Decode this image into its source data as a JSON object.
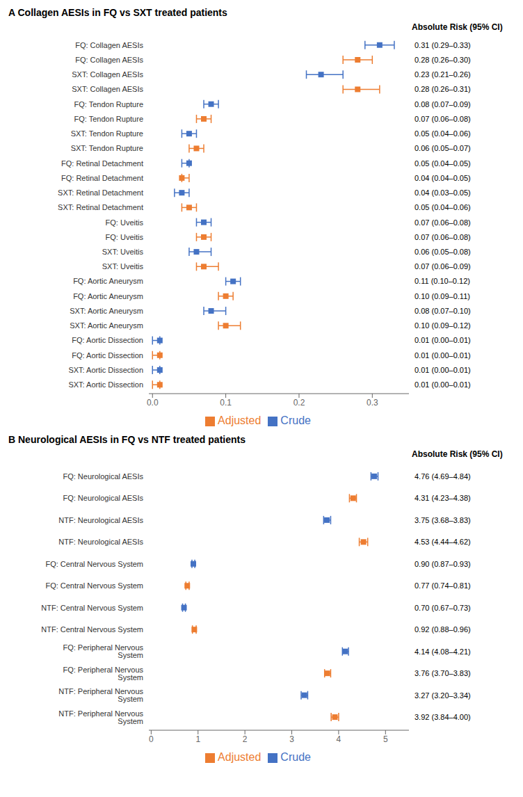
{
  "chart_data": [
    {
      "type": "scatter",
      "orientation": "horizontal",
      "title": "A  Collagen AESIs in FQ vs SXT treated patients",
      "annotations": [
        "Absolute Risk (95% CI)"
      ],
      "categories": [
        "FQ: Collagen AESIs",
        "FQ: Collagen AESIs",
        "SXT: Collagen AESIs",
        "SXT: Collagen AESIs",
        "FQ: Tendon Rupture",
        "FQ: Tendon Rupture",
        "SXT: Tendon Rupture",
        "SXT: Tendon Rupture",
        "FQ: Retinal Detachment",
        "FQ: Retinal Detachment",
        "SXT: Retinal Detachment",
        "SXT: Retinal Detachment",
        "FQ: Uveitis",
        "FQ: Uveitis",
        "SXT: Uveitis",
        "SXT: Uveitis",
        "FQ: Aortic Aneurysm",
        "FQ: Aortic Aneurysm",
        "SXT: Aortic Aneurysm",
        "SXT: Aortic Aneurysm",
        "FQ: Aortic Dissection",
        "FQ: Aortic Dissection",
        "SXT: Aortic Dissection",
        "SXT: Aortic Dissection"
      ],
      "xlim": [
        -0.005,
        0.35
      ],
      "xticks": [
        {
          "value": 0.0,
          "label": "0.0"
        },
        0.1,
        0.2,
        0.3
      ],
      "grid": false,
      "legend": "bottom",
      "series": [
        {
          "name": "Crude",
          "color": "#4472C4",
          "marker": "square",
          "values": [
            0.31,
            null,
            0.23,
            null,
            0.08,
            null,
            0.05,
            null,
            0.05,
            null,
            0.04,
            null,
            0.07,
            null,
            0.06,
            null,
            0.11,
            null,
            0.08,
            null,
            0.01,
            null,
            0.01,
            null
          ],
          "ci_lo": [
            0.29,
            null,
            0.21,
            null,
            0.07,
            null,
            0.04,
            null,
            0.04,
            null,
            0.03,
            null,
            0.06,
            null,
            0.05,
            null,
            0.1,
            null,
            0.07,
            null,
            0.0,
            null,
            0.0,
            null
          ],
          "ci_hi": [
            0.33,
            null,
            0.26,
            null,
            0.09,
            null,
            0.06,
            null,
            0.05,
            null,
            0.05,
            null,
            0.08,
            null,
            0.08,
            null,
            0.12,
            null,
            0.1,
            null,
            0.01,
            null,
            0.01,
            null
          ],
          "value_labels": [
            "0.31 (0.29–0.33)",
            null,
            "0.23 (0.21–0.26)",
            null,
            "0.08 (0.07–0.09)",
            null,
            "0.05 (0.04–0.06)",
            null,
            "0.05 (0.04–0.05)",
            null,
            "0.04 (0.03–0.05)",
            null,
            "0.07 (0.06–0.08)",
            null,
            "0.06 (0.05–0.08)",
            null,
            "0.11 (0.10–0.12)",
            null,
            "0.08 (0.07–0.10)",
            null,
            "0.01 (0.00–0.01)",
            null,
            "0.01 (0.00–0.01)",
            null
          ]
        },
        {
          "name": "Adjusted",
          "color": "#ED7D31",
          "marker": "square",
          "values": [
            null,
            0.28,
            null,
            0.28,
            null,
            0.07,
            null,
            0.06,
            null,
            0.04,
            null,
            0.05,
            null,
            0.07,
            null,
            0.07,
            null,
            0.1,
            null,
            0.1,
            null,
            0.01,
            null,
            0.01
          ],
          "ci_lo": [
            null,
            0.26,
            null,
            0.26,
            null,
            0.06,
            null,
            0.05,
            null,
            0.04,
            null,
            0.04,
            null,
            0.06,
            null,
            0.06,
            null,
            0.09,
            null,
            0.09,
            null,
            0.0,
            null,
            0.0
          ],
          "ci_hi": [
            null,
            0.3,
            null,
            0.31,
            null,
            0.08,
            null,
            0.07,
            null,
            0.05,
            null,
            0.06,
            null,
            0.08,
            null,
            0.09,
            null,
            0.11,
            null,
            0.12,
            null,
            0.01,
            null,
            0.01
          ],
          "value_labels": [
            null,
            "0.28 (0.26–0.30)",
            null,
            "0.28 (0.26–0.31)",
            null,
            "0.07 (0.06–0.08)",
            null,
            "0.06 (0.05–0.07)",
            null,
            "0.04 (0.04–0.05)",
            null,
            "0.05 (0.04–0.06)",
            null,
            "0.07 (0.06–0.08)",
            null,
            "0.07 (0.06–0.09)",
            null,
            "0.10 (0.09–0.11)",
            null,
            "0.10 (0.09–0.12)",
            null,
            "0.01 (0.00–0.01)",
            null,
            "0.01 (0.00–0.01)"
          ]
        }
      ]
    },
    {
      "type": "scatter",
      "orientation": "horizontal",
      "title": "B  Neurological AESIs in FQ vs NTF treated patients",
      "annotations": [
        "Absolute Risk (95% CI)"
      ],
      "categories": [
        "FQ: Neurological AESIs",
        "FQ: Neurological AESIs",
        "NTF: Neurological AESIs",
        "NTF: Neurological AESIs",
        "FQ: Central Nervous System",
        "FQ: Central Nervous System",
        "NTF: Central Nervous System",
        "NTF: Central Nervous System",
        "FQ: Peripheral Nervous System",
        "FQ: Peripheral Nervous System",
        "NTF: Peripheral Nervous System",
        "NTF: Peripheral Nervous System"
      ],
      "xlim": [
        -0.05,
        5.5
      ],
      "xticks": [
        0,
        1,
        2,
        3,
        4,
        5
      ],
      "grid": false,
      "legend": "bottom",
      "series": [
        {
          "name": "Crude",
          "color": "#4472C4",
          "marker": "square",
          "values": [
            4.76,
            null,
            3.75,
            null,
            0.9,
            null,
            0.7,
            null,
            4.14,
            null,
            3.27,
            null
          ],
          "ci_lo": [
            4.69,
            null,
            3.68,
            null,
            0.87,
            null,
            0.67,
            null,
            4.08,
            null,
            3.2,
            null
          ],
          "ci_hi": [
            4.84,
            null,
            3.83,
            null,
            0.93,
            null,
            0.73,
            null,
            4.21,
            null,
            3.34,
            null
          ],
          "value_labels": [
            "4.76 (4.69–4.84)",
            null,
            "3.75 (3.68–3.83)",
            null,
            "0.90 (0.87–0.93)",
            null,
            "0.70 (0.67–0.73)",
            null,
            "4.14 (4.08–4.21)",
            null,
            "3.27 (3.20–3.34)",
            null
          ]
        },
        {
          "name": "Adjusted",
          "color": "#ED7D31",
          "marker": "square",
          "values": [
            null,
            4.31,
            null,
            4.53,
            null,
            0.77,
            null,
            0.92,
            null,
            3.76,
            null,
            3.92
          ],
          "ci_lo": [
            null,
            4.23,
            null,
            4.44,
            null,
            0.74,
            null,
            0.88,
            null,
            3.7,
            null,
            3.84
          ],
          "ci_hi": [
            null,
            4.38,
            null,
            4.62,
            null,
            0.81,
            null,
            0.96,
            null,
            3.83,
            null,
            4.0
          ],
          "value_labels": [
            null,
            "4.31 (4.23–4.38)",
            null,
            "4.53 (4.44–4.62)",
            null,
            "0.77 (0.74–0.81)",
            null,
            "0.92 (0.88–0.96)",
            null,
            "3.76 (3.70–3.83)",
            null,
            "3.92 (3.84–4.00)"
          ]
        }
      ]
    }
  ]
}
